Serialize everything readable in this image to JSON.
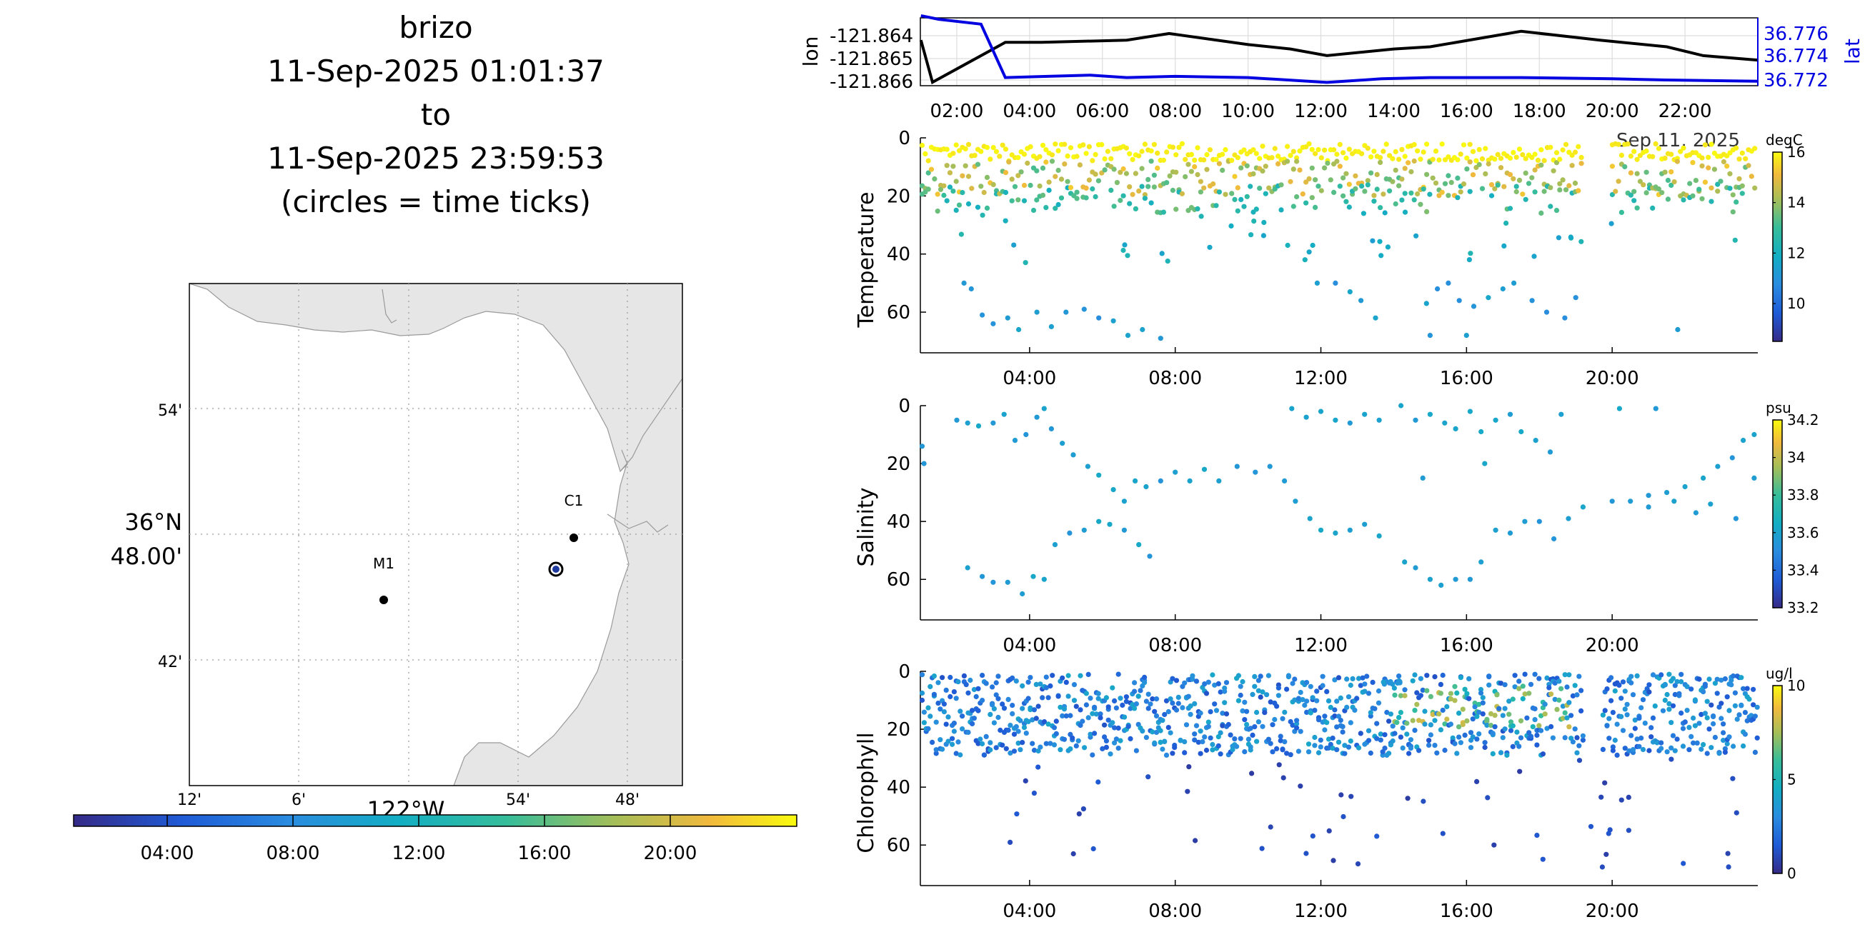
{
  "title": {
    "lines": [
      "brizo",
      "11-Sep-2025 01:01:37",
      "to",
      "11-Sep-2025 23:59:53",
      "(circles = time ticks)"
    ]
  },
  "map": {
    "lat_labels": [
      "54'",
      "42'"
    ],
    "lat_main_line1": "36°N",
    "lat_main_line2": "48.00'",
    "lon_labels": [
      "12'",
      "6'",
      "54'",
      "48'"
    ],
    "lon_main": "122°W",
    "stations": [
      {
        "name": "M1"
      },
      {
        "name": "C1"
      }
    ],
    "land_color": "#e6e6e6",
    "vehicle_marker_color": "#1f3a9e"
  },
  "time_colorbar": {
    "ticks": [
      "04:00",
      "08:00",
      "12:00",
      "16:00",
      "20:00"
    ],
    "colormap": "parula"
  },
  "chart_data": [
    {
      "type": "line",
      "x_ticks": [
        "02:00",
        "04:00",
        "06:00",
        "08:00",
        "10:00",
        "12:00",
        "14:00",
        "16:00",
        "18:00",
        "20:00",
        "22:00"
      ],
      "corner_label": "Sep 11, 2025",
      "series": [
        {
          "name": "lon",
          "color": "#000000",
          "axis": "left",
          "x": [
            "01:01",
            "01:20",
            "03:20",
            "04:20",
            "06:40",
            "07:50",
            "10:00",
            "11:10",
            "12:10",
            "14:00",
            "15:00",
            "17:30",
            "19:40",
            "21:30",
            "22:30",
            "23:59"
          ],
          "values": [
            -121.8642,
            -121.8661,
            -121.8643,
            -121.8643,
            -121.8642,
            -121.8639,
            -121.8644,
            -121.8646,
            -121.8649,
            -121.8646,
            -121.8645,
            -121.8638,
            -121.8642,
            -121.8645,
            -121.8649,
            -121.8651
          ]
        },
        {
          "name": "lat",
          "color": "#0000e0",
          "axis": "right",
          "x": [
            "01:01",
            "01:30",
            "02:40",
            "03:20",
            "04:30",
            "05:40",
            "06:40",
            "08:00",
            "10:00",
            "12:10",
            "13:40",
            "15:00",
            "17:30",
            "20:00",
            "21:30",
            "23:59"
          ],
          "values": [
            36.7773,
            36.777,
            36.7766,
            36.7722,
            36.7723,
            36.7724,
            36.7722,
            36.7723,
            36.7722,
            36.7718,
            36.7721,
            36.7722,
            36.7722,
            36.7721,
            36.772,
            36.7719
          ]
        }
      ],
      "y_left": {
        "label": "lon",
        "ticks": [
          "-121.864",
          "-121.865",
          "-121.866"
        ]
      },
      "y_right": {
        "label": "lat",
        "ticks": [
          "36.776",
          "36.774",
          "36.772"
        ]
      }
    },
    {
      "type": "scatter",
      "ylabel": "Temperature",
      "x_ticks": [
        "04:00",
        "08:00",
        "12:00",
        "16:00",
        "20:00"
      ],
      "y_ticks": [
        "0",
        "20",
        "40",
        "60"
      ],
      "ylim": [
        74,
        0
      ],
      "colorbar": {
        "unit": "degC",
        "ticks": [
          "16",
          "14",
          "12",
          "10"
        ],
        "range": [
          8.5,
          16
        ]
      }
    },
    {
      "type": "scatter",
      "ylabel": "Salinity",
      "x_ticks": [
        "04:00",
        "08:00",
        "12:00",
        "16:00",
        "20:00"
      ],
      "y_ticks": [
        "0",
        "20",
        "40",
        "60"
      ],
      "ylim": [
        74,
        0
      ],
      "colorbar": {
        "unit": "psu",
        "ticks": [
          "34.2",
          "34",
          "33.8",
          "33.6",
          "33.4",
          "33.2"
        ],
        "range": [
          33.2,
          34.2
        ]
      }
    },
    {
      "type": "scatter",
      "ylabel": "Chlorophyll",
      "x_ticks": [
        "04:00",
        "08:00",
        "12:00",
        "16:00",
        "20:00"
      ],
      "y_ticks": [
        "0",
        "20",
        "40",
        "60"
      ],
      "ylim": [
        74,
        0
      ],
      "colorbar": {
        "unit": "ug/l",
        "ticks": [
          "10",
          "5",
          "0"
        ],
        "range": [
          0,
          10
        ]
      }
    }
  ]
}
